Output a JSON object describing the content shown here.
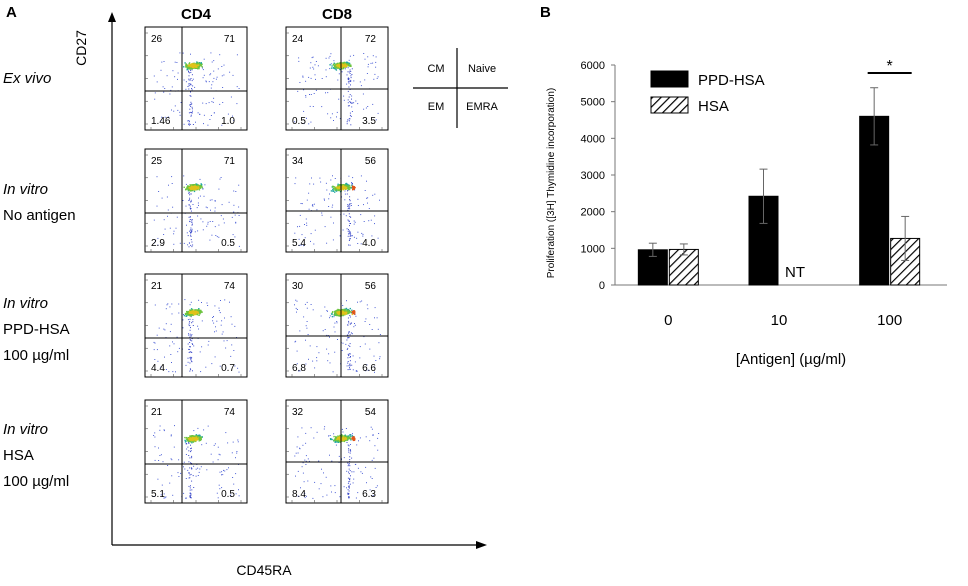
{
  "panel_a": {
    "label": "A",
    "y_axis_label": "CD27",
    "x_axis_label": "CD45RA",
    "columns": [
      "CD4",
      "CD8"
    ],
    "quadrant_key": {
      "top_left": "CM",
      "top_right": "Naive",
      "bottom_left": "EM",
      "bottom_right": "EMRA"
    },
    "rows": [
      {
        "label_lines": [
          {
            "text": "Ex vivo",
            "italic": true
          }
        ],
        "plots": [
          {
            "tl": "26",
            "tr": "71",
            "bl": "1.46",
            "br": "1.0"
          },
          {
            "tl": "24",
            "tr": "72",
            "bl": "0.5",
            "br": "3.5"
          }
        ]
      },
      {
        "label_lines": [
          {
            "text": "In vitro",
            "italic": true
          },
          {
            "text": "No antigen",
            "italic": false
          }
        ],
        "plots": [
          {
            "tl": "25",
            "tr": "71",
            "bl": "2.9",
            "br": "0.5"
          },
          {
            "tl": "34",
            "tr": "56",
            "bl": "5.4",
            "br": "4.0"
          }
        ]
      },
      {
        "label_lines": [
          {
            "text": "In vitro",
            "italic": true
          },
          {
            "text": "PPD-HSA",
            "italic": false
          },
          {
            "text": "100 µg/ml",
            "italic": false
          }
        ],
        "plots": [
          {
            "tl": "21",
            "tr": "74",
            "bl": "4.4",
            "br": "0.7"
          },
          {
            "tl": "30",
            "tr": "56",
            "bl": "6.8",
            "br": "6.6"
          }
        ]
      },
      {
        "label_lines": [
          {
            "text": "In vitro",
            "italic": true
          },
          {
            "text": "HSA",
            "italic": false
          },
          {
            "text": "100 µg/ml",
            "italic": false
          }
        ],
        "plots": [
          {
            "tl": "21",
            "tr": "74",
            "bl": "5.1",
            "br": "0.5"
          },
          {
            "tl": "32",
            "tr": "54",
            "bl": "8.4",
            "br": "6.3"
          }
        ]
      }
    ]
  },
  "chart_data": {
    "type": "bar",
    "label": "B",
    "title": "",
    "categories": [
      "0",
      "10",
      "100"
    ],
    "series": [
      {
        "name": "PPD-HSA",
        "pattern": "solid",
        "values": [
          960,
          2420,
          4600
        ],
        "errors": [
          180,
          740,
          780
        ]
      },
      {
        "name": "HSA",
        "pattern": "hatched",
        "values": [
          970,
          null,
          1270
        ],
        "errors": [
          150,
          null,
          600
        ]
      }
    ],
    "annotations": [
      {
        "category": "10",
        "series": "HSA",
        "text": "NT"
      },
      {
        "category": "100",
        "text": "*"
      }
    ],
    "xlabel": "[Antigen] (µg/ml)",
    "ylabel": "Proliferation ([3H] Thymidine incorporation)",
    "ylim": [
      0,
      6000
    ],
    "yticks": [
      0,
      1000,
      2000,
      3000,
      4000,
      5000,
      6000
    ],
    "legend_position": "top-left",
    "grid": false
  },
  "colors": {
    "bar_solid": "#000000",
    "hatch": "#000000",
    "axis": "#777777"
  }
}
